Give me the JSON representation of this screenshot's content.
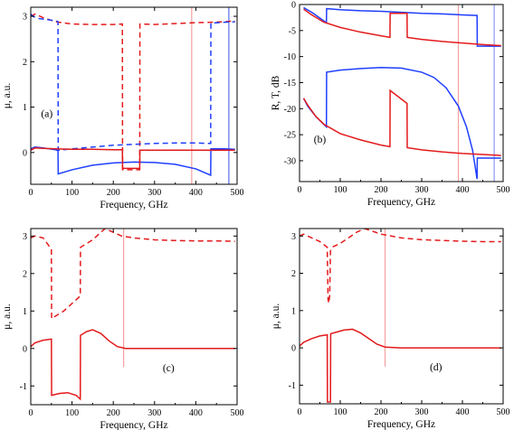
{
  "chart_data": [
    {
      "type": "line",
      "panel_label": "(a)",
      "xlabel": "Frequency, GHz",
      "ylabel": "μ, a.u.",
      "xlim": [
        0,
        500
      ],
      "ylim": [
        -0.7,
        3.2
      ],
      "xticks": [
        "0",
        "100",
        "200",
        "300",
        "400",
        "500"
      ],
      "yticks": [
        "0",
        "1",
        "2",
        "3"
      ],
      "ytick_values": [
        0,
        1,
        2,
        3
      ],
      "vlines": [
        {
          "x": 390,
          "color": "#f4a0a0"
        },
        {
          "x": 480,
          "color": "#5a6cf0"
        }
      ],
      "series": [
        {
          "color": "#e31a1c",
          "dash": true,
          "x": [
            0,
            10,
            30,
            60,
            100,
            150,
            200,
            222,
            222.5,
            238,
            260,
            264,
            264.5,
            300,
            350,
            400,
            440,
            470,
            495
          ],
          "y": [
            3.0,
            3.05,
            2.97,
            2.88,
            2.83,
            2.82,
            2.82,
            2.83,
            -0.38,
            -0.38,
            -0.38,
            -0.38,
            2.83,
            2.82,
            2.84,
            2.86,
            2.87,
            2.88,
            2.9
          ]
        },
        {
          "color": "#1f3fff",
          "dash": true,
          "x": [
            0,
            5,
            20,
            62,
            66,
            66.5,
            100,
            150,
            200,
            250,
            300,
            350,
            400,
            430,
            436,
            436.5,
            470,
            495
          ],
          "y": [
            3.05,
            3.0,
            2.95,
            2.9,
            2.88,
            0.05,
            0.08,
            0.12,
            0.16,
            0.18,
            0.2,
            0.21,
            0.21,
            0.2,
            0.2,
            2.85,
            2.87,
            2.88
          ]
        },
        {
          "color": "#1f3fff",
          "dash": false,
          "x": [
            0,
            10,
            30,
            60,
            66,
            66.5,
            100,
            150,
            200,
            250,
            300,
            350,
            400,
            436,
            436.5,
            470,
            495
          ],
          "y": [
            0.08,
            0.12,
            0.1,
            0.06,
            0.04,
            -0.47,
            -0.38,
            -0.28,
            -0.23,
            -0.21,
            -0.22,
            -0.26,
            -0.36,
            -0.5,
            0.08,
            0.08,
            0.07
          ]
        },
        {
          "color": "#e31a1c",
          "dash": false,
          "x": [
            0,
            10,
            30,
            60,
            100,
            150,
            200,
            222,
            222.5,
            264,
            264.5,
            300,
            350,
            400,
            450,
            495
          ],
          "y": [
            0.05,
            0.1,
            0.09,
            0.08,
            0.07,
            0.07,
            0.06,
            0.06,
            -0.35,
            -0.35,
            0.05,
            0.05,
            0.05,
            0.05,
            0.05,
            0.05
          ]
        }
      ]
    },
    {
      "type": "line",
      "panel_label": "(b)",
      "xlabel": "Frequency, GHz",
      "ylabel": "R, T, dB",
      "xlim": [
        0,
        500
      ],
      "ylim": [
        -34,
        0
      ],
      "xticks": [
        "0",
        "100",
        "200",
        "300",
        "400",
        "500"
      ],
      "yticks": [
        "0",
        "-5",
        "-10",
        "-15",
        "-20",
        "-25",
        "-30"
      ],
      "ytick_values": [
        0,
        -5,
        -10,
        -15,
        -20,
        -25,
        -30
      ],
      "vlines": [
        {
          "x": 390,
          "color": "#f4a0a0"
        },
        {
          "x": 478,
          "color": "#8a9af5"
        }
      ],
      "series": [
        {
          "color": "#1f3fff",
          "dash": false,
          "x": [
            10,
            30,
            50,
            66,
            66.5,
            100,
            150,
            200,
            250,
            300,
            350,
            400,
            436,
            436.5,
            460,
            480,
            495
          ],
          "y": [
            -0.6,
            -1.5,
            -2.6,
            -3.5,
            -0.8,
            -1.0,
            -1.2,
            -1.3,
            -1.5,
            -1.7,
            -1.8,
            -2.0,
            -2.1,
            -8.0,
            -8.0,
            -8.0,
            -8.0
          ]
        },
        {
          "color": "#e31a1c",
          "dash": false,
          "x": [
            10,
            30,
            60,
            100,
            150,
            200,
            222,
            222.5,
            264,
            264.5,
            300,
            350,
            400,
            450,
            495
          ],
          "y": [
            -0.9,
            -2.0,
            -3.4,
            -4.4,
            -5.3,
            -6.0,
            -6.3,
            -1.7,
            -1.7,
            -6.3,
            -6.7,
            -7.1,
            -7.4,
            -7.7,
            -7.9
          ]
        },
        {
          "color": "#1f3fff",
          "dash": false,
          "x": [
            10,
            20,
            40,
            66,
            66.5,
            100,
            150,
            200,
            250,
            300,
            330,
            360,
            390,
            410,
            425,
            436,
            436.5,
            460,
            495
          ],
          "y": [
            -18.0,
            -19.5,
            -21.5,
            -23.5,
            -13.0,
            -12.6,
            -12.3,
            -12.1,
            -12.2,
            -13.0,
            -14.0,
            -16.0,
            -19.5,
            -23.5,
            -28.0,
            -33.5,
            -29.5,
            -29.5,
            -29.5
          ]
        },
        {
          "color": "#e31a1c",
          "dash": false,
          "x": [
            10,
            20,
            40,
            60,
            100,
            150,
            200,
            222,
            222.5,
            264,
            264.5,
            300,
            350,
            400,
            450,
            495
          ],
          "y": [
            -18.0,
            -19.3,
            -21.5,
            -23.0,
            -24.8,
            -26.0,
            -27.0,
            -27.3,
            -16.5,
            -19.0,
            -27.5,
            -27.9,
            -28.3,
            -28.6,
            -28.8,
            -29.0
          ]
        }
      ]
    },
    {
      "type": "line",
      "panel_label": "(c)",
      "xlabel": "Frequency, GHz",
      "ylabel": "μ, a.u.",
      "xlim": [
        0,
        500
      ],
      "ylim": [
        -1.5,
        3.2
      ],
      "xticks": [
        "0",
        "100",
        "200",
        "300",
        "400",
        "500"
      ],
      "yticks": [
        "-1",
        "0",
        "1",
        "2",
        "3"
      ],
      "ytick_values": [
        -1,
        0,
        1,
        2,
        3
      ],
      "vlines": [
        {
          "x": 225,
          "color": "#f4a0a0",
          "ymin": -0.5,
          "ymax": 3.2
        }
      ],
      "series": [
        {
          "color": "#e31a1c",
          "dash": true,
          "x": [
            0,
            10,
            30,
            50,
            50.5,
            80,
            110,
            120,
            120.5,
            150,
            180,
            200,
            220,
            250,
            300,
            350,
            400,
            450,
            495
          ],
          "y": [
            2.95,
            3.0,
            2.95,
            2.65,
            0.8,
            1.0,
            1.3,
            1.4,
            2.7,
            2.9,
            3.2,
            3.1,
            3.0,
            2.95,
            2.9,
            2.88,
            2.87,
            2.87,
            2.86
          ]
        },
        {
          "color": "#e31a1c",
          "dash": false,
          "x": [
            0,
            10,
            30,
            50,
            50.5,
            70,
            90,
            110,
            120,
            120.5,
            135,
            150,
            170,
            190,
            210,
            230,
            250,
            300,
            350,
            400,
            450,
            495
          ],
          "y": [
            0.05,
            0.15,
            0.22,
            0.25,
            -1.25,
            -1.2,
            -1.18,
            -1.25,
            -1.35,
            0.35,
            0.45,
            0.5,
            0.4,
            0.2,
            0.05,
            0.0,
            0.0,
            0.0,
            0.0,
            0.0,
            0.0,
            0.0
          ]
        }
      ]
    },
    {
      "type": "line",
      "panel_label": "(d)",
      "xlabel": "Frequency, GHz",
      "ylabel": "μ, a.u.",
      "xlim": [
        0,
        500
      ],
      "ylim": [
        -1.5,
        3.2
      ],
      "xticks": [
        "0",
        "100",
        "200",
        "300",
        "400",
        "500"
      ],
      "yticks": [
        "-1",
        "0",
        "1",
        "2",
        "3"
      ],
      "ytick_values": [
        -1,
        0,
        1,
        2,
        3
      ],
      "vlines": [
        {
          "x": 210,
          "color": "#f4a0a0",
          "ymin": -0.5,
          "ymax": 3.2
        }
      ],
      "series": [
        {
          "color": "#e31a1c",
          "dash": true,
          "x": [
            0,
            10,
            30,
            50,
            68,
            70,
            72,
            74,
            76,
            80,
            100,
            120,
            140,
            160,
            200,
            250,
            300,
            350,
            400,
            450,
            495
          ],
          "y": [
            3.0,
            3.05,
            2.95,
            2.85,
            2.7,
            1.3,
            1.2,
            1.4,
            2.6,
            2.7,
            2.8,
            2.95,
            3.1,
            3.2,
            3.05,
            2.95,
            2.9,
            2.88,
            2.86,
            2.85,
            2.85
          ]
        },
        {
          "color": "#e31a1c",
          "dash": false,
          "x": [
            0,
            10,
            30,
            50,
            68,
            68.5,
            76,
            76.5,
            90,
            110,
            130,
            150,
            170,
            190,
            210,
            250,
            300,
            350,
            400,
            450,
            495
          ],
          "y": [
            0.05,
            0.15,
            0.25,
            0.32,
            0.35,
            -1.45,
            -1.45,
            0.38,
            0.42,
            0.48,
            0.5,
            0.4,
            0.25,
            0.1,
            0.02,
            0.0,
            0.0,
            0.0,
            0.0,
            0.0,
            0.0
          ]
        }
      ]
    }
  ]
}
